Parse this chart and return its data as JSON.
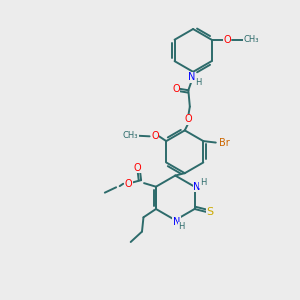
{
  "bg_color": "#ececec",
  "bond_color": "#2d6b6b",
  "atom_colors": {
    "O": "#ff0000",
    "N": "#0000ff",
    "S": "#ccaa00",
    "Br": "#cc6600",
    "C": "#2d6b6b",
    "H": "#2d6b6b"
  },
  "title": ""
}
